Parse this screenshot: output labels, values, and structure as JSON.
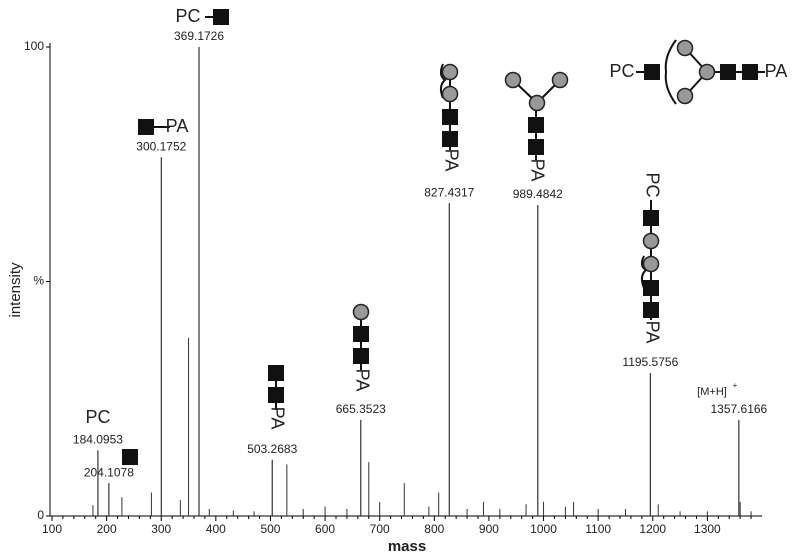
{
  "chart_data": {
    "type": "spectrum",
    "xlabel": "mass",
    "ylabel": "intensity",
    "xlim": [
      100,
      1400
    ],
    "xticks": [
      100,
      200,
      300,
      400,
      500,
      600,
      700,
      800,
      900,
      1000,
      1100,
      1200,
      1300
    ],
    "ylim": [
      0,
      100
    ],
    "yticks": [
      0,
      {
        "value": 50,
        "label": "%"
      },
      100
    ],
    "color": "#333333",
    "peaks": {
      "x": [
        184.0953,
        204.1078,
        300.1752,
        369.1726,
        503.2683,
        665.3523,
        827.4317,
        989.4842,
        1195.5756,
        1357.6166
      ],
      "values": [
        14,
        7,
        76.5,
        100,
        12,
        20.5,
        66.7,
        66.3,
        30.5,
        20.5
      ]
    },
    "minor_peaks": {
      "x": [
        175,
        228,
        282,
        335,
        350,
        388,
        432,
        470,
        530,
        560,
        600,
        640,
        680,
        700,
        745,
        790,
        808,
        860,
        890,
        920,
        968,
        1000,
        1040,
        1055,
        1100,
        1150,
        1210,
        1250,
        1300,
        1360,
        1380
      ],
      "values": [
        2.3,
        4,
        5,
        3.4,
        38,
        1.5,
        1.2,
        1,
        11,
        1.5,
        2,
        1.5,
        11.5,
        3,
        7,
        2,
        5,
        1.5,
        3,
        1.5,
        2.5,
        3,
        2,
        3,
        1.5,
        1.5,
        2.5,
        1,
        1,
        3,
        1
      ]
    },
    "annotations": [
      "PC",
      "PA",
      "PC",
      "PA",
      "PA",
      "PA",
      "PA",
      "PC",
      "PA",
      "PC",
      "PA",
      "[M+H]",
      "+"
    ]
  }
}
